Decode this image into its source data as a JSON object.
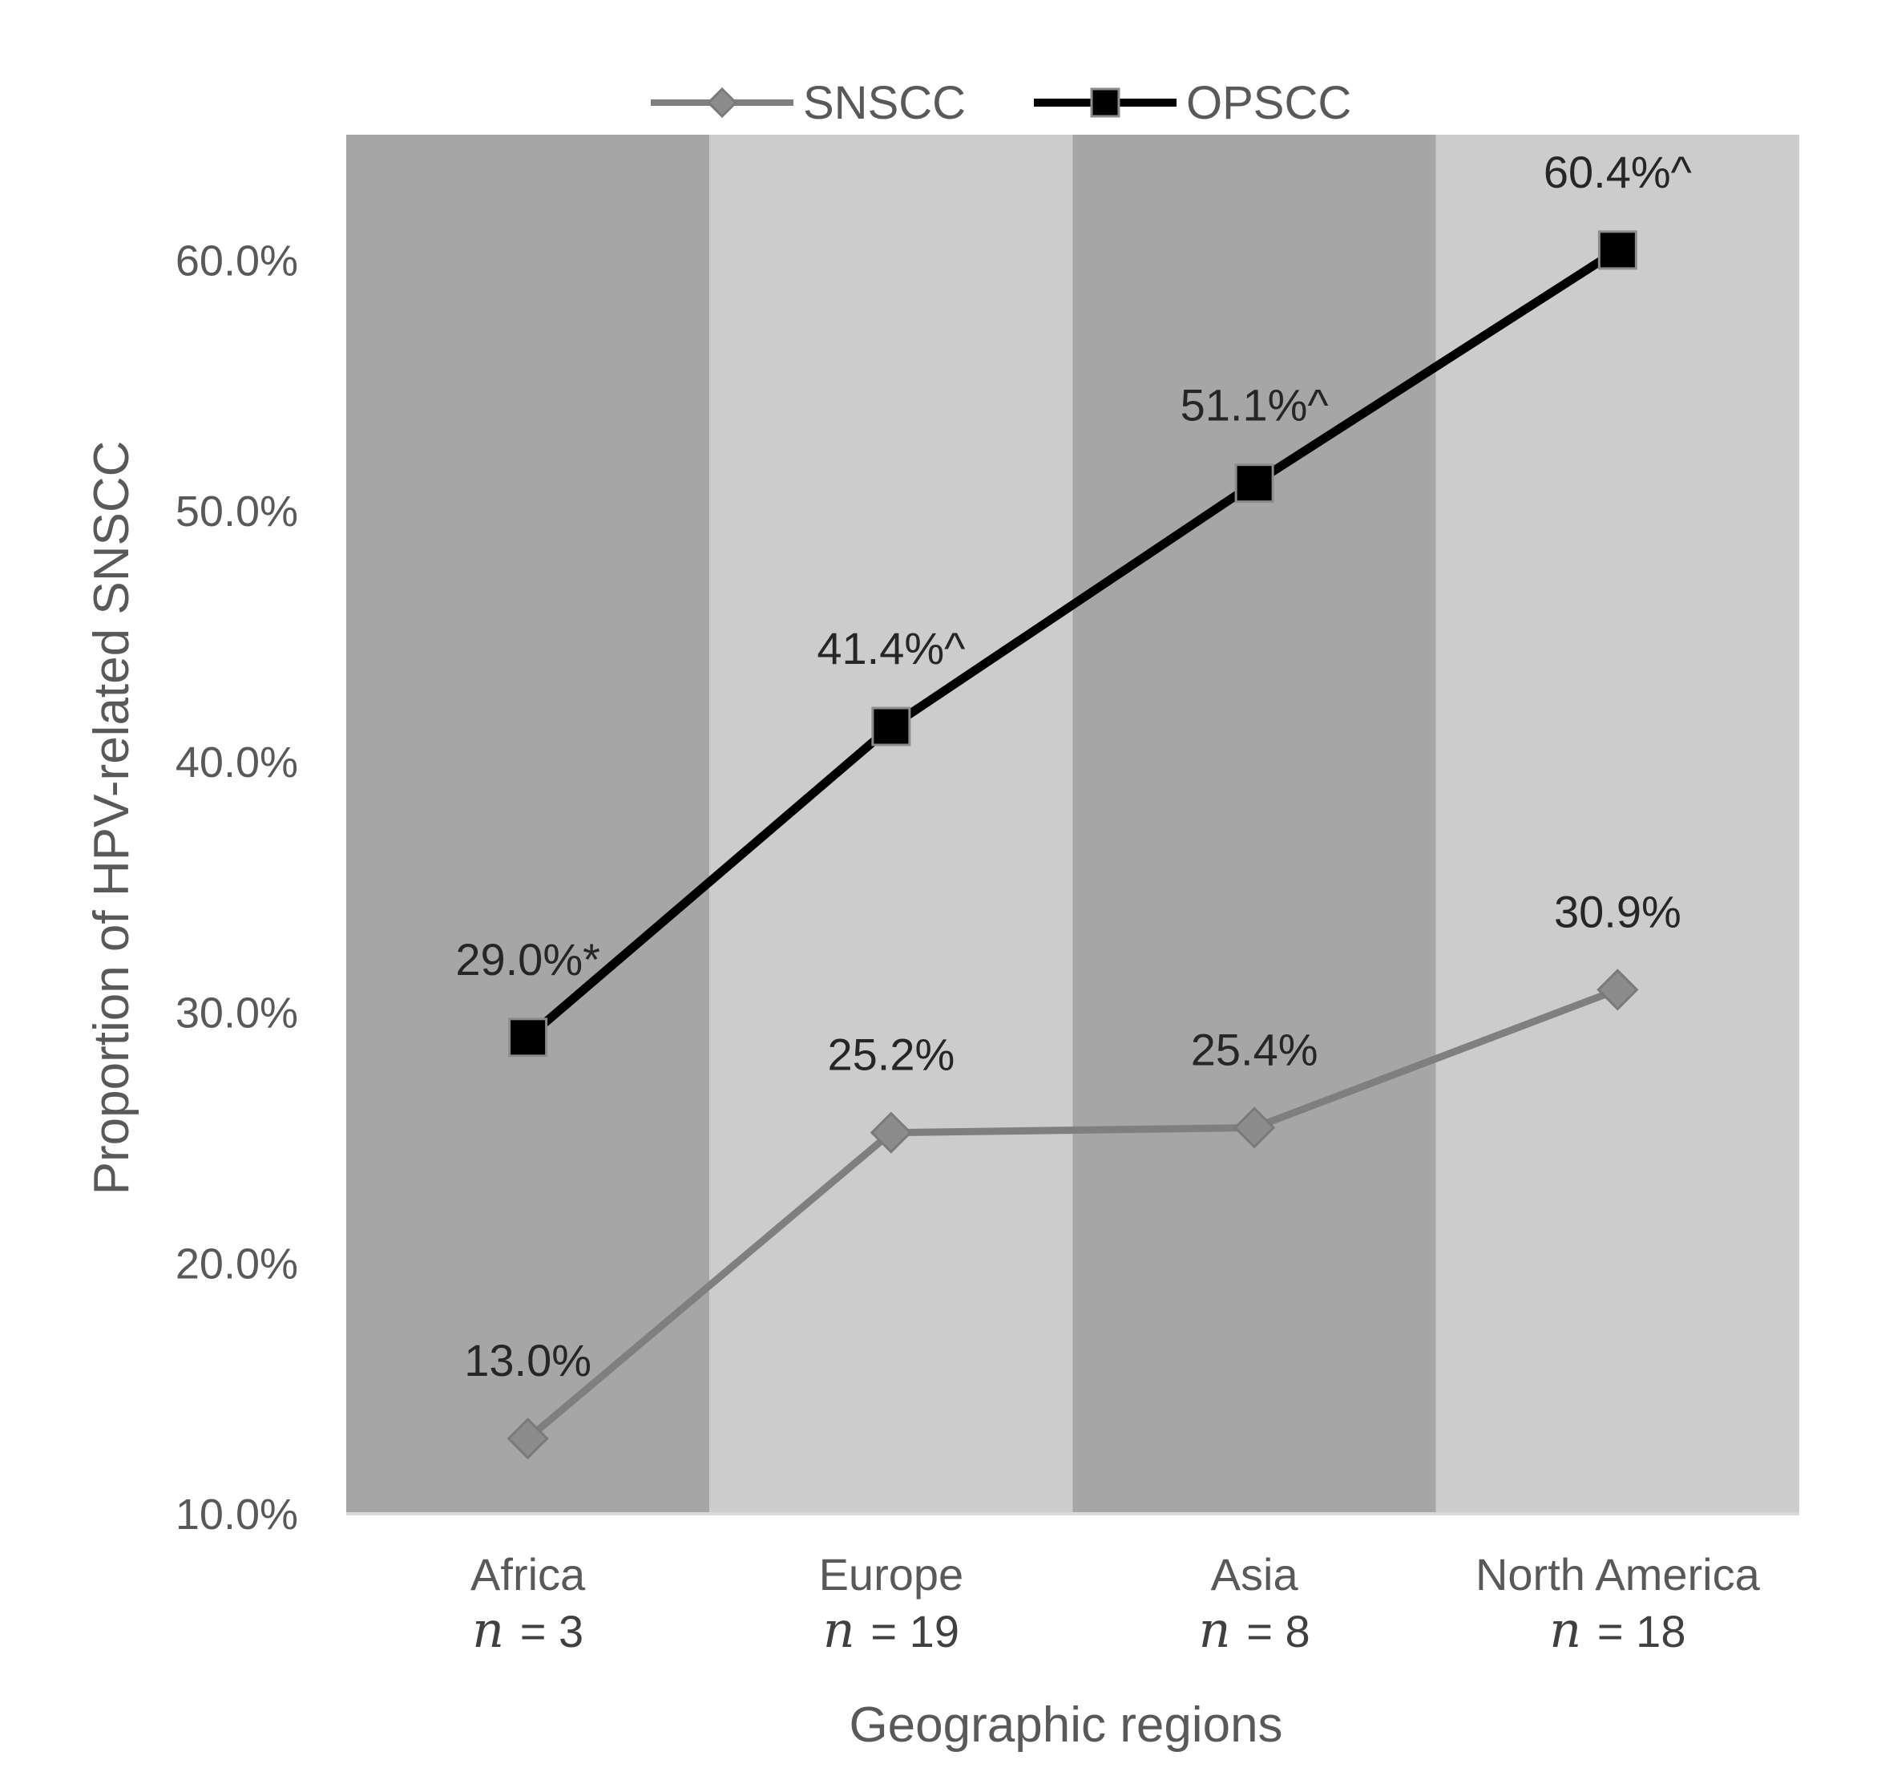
{
  "chart_data": {
    "type": "line",
    "title": "",
    "categories": [
      "Africa",
      "Europe",
      "Asia",
      "North America"
    ],
    "category_n": [
      "= 3",
      "= 19",
      "= 8",
      "= 18"
    ],
    "n_symbol": "n",
    "xlabel": "Geographic regions",
    "ylabel": "Proportion of HPV-related SNSCC",
    "ylim": [
      10,
      65
    ],
    "yticks": [
      10,
      20,
      30,
      40,
      50,
      60
    ],
    "ytick_labels": [
      "10.0%",
      "20.0%",
      "30.0%",
      "40.0%",
      "50.0%",
      "60.0%"
    ],
    "grid": false,
    "legend": "top-center",
    "band_colors": [
      "#a6a6a6",
      "#cccccc",
      "#a6a6a6",
      "#cccccc"
    ],
    "series": [
      {
        "name": "SNSCC",
        "values": [
          13.0,
          25.2,
          25.4,
          30.9
        ],
        "labels": [
          "13.0%",
          "25.2%",
          "25.4%",
          "30.9%"
        ],
        "color": "#7f7f7f",
        "marker": "diamond"
      },
      {
        "name": "OPSCC",
        "values": [
          29.0,
          41.4,
          51.1,
          60.4
        ],
        "labels": [
          "29.0%*",
          "41.4%^",
          "51.1%^",
          "60.4%^"
        ],
        "color": "#000000",
        "marker": "square"
      }
    ]
  }
}
